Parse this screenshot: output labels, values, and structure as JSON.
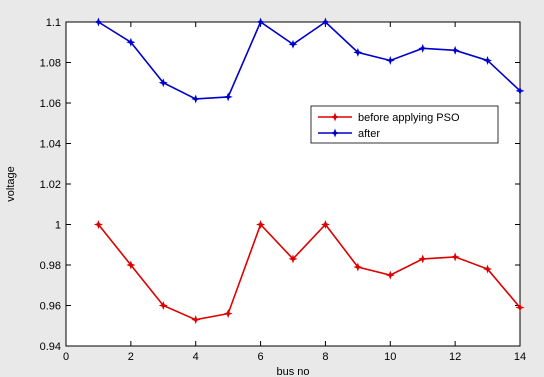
{
  "chart_data": {
    "type": "line",
    "title": "",
    "xlabel": "bus no",
    "ylabel": "voltage",
    "xlim": [
      0,
      14
    ],
    "ylim": [
      0.94,
      1.1
    ],
    "xticks": [
      0,
      2,
      4,
      6,
      8,
      10,
      12,
      14
    ],
    "yticks": [
      0.94,
      0.96,
      0.98,
      1,
      1.02,
      1.04,
      1.06,
      1.08,
      1.1
    ],
    "xtick_labels": [
      "0",
      "2",
      "4",
      "6",
      "8",
      "10",
      "12",
      "14"
    ],
    "ytick_labels": [
      "0.94",
      "0.96",
      "0.98",
      "1",
      "1.02",
      "1.04",
      "1.06",
      "1.08",
      "1.1"
    ],
    "grid": false,
    "legend_position": "right",
    "x": [
      1,
      2,
      3,
      4,
      5,
      6,
      7,
      8,
      9,
      10,
      11,
      12,
      13,
      14
    ],
    "series": [
      {
        "name": "before applying PSO",
        "color": "#dd0000",
        "values": [
          1.0,
          0.98,
          0.96,
          0.953,
          0.956,
          1.0,
          0.983,
          1.0,
          0.979,
          0.975,
          0.983,
          0.984,
          0.978,
          0.959
        ]
      },
      {
        "name": "after",
        "color": "#0000cc",
        "values": [
          1.1,
          1.09,
          1.07,
          1.062,
          1.063,
          1.1,
          1.089,
          1.1,
          1.085,
          1.081,
          1.087,
          1.086,
          1.081,
          1.066
        ]
      }
    ]
  }
}
